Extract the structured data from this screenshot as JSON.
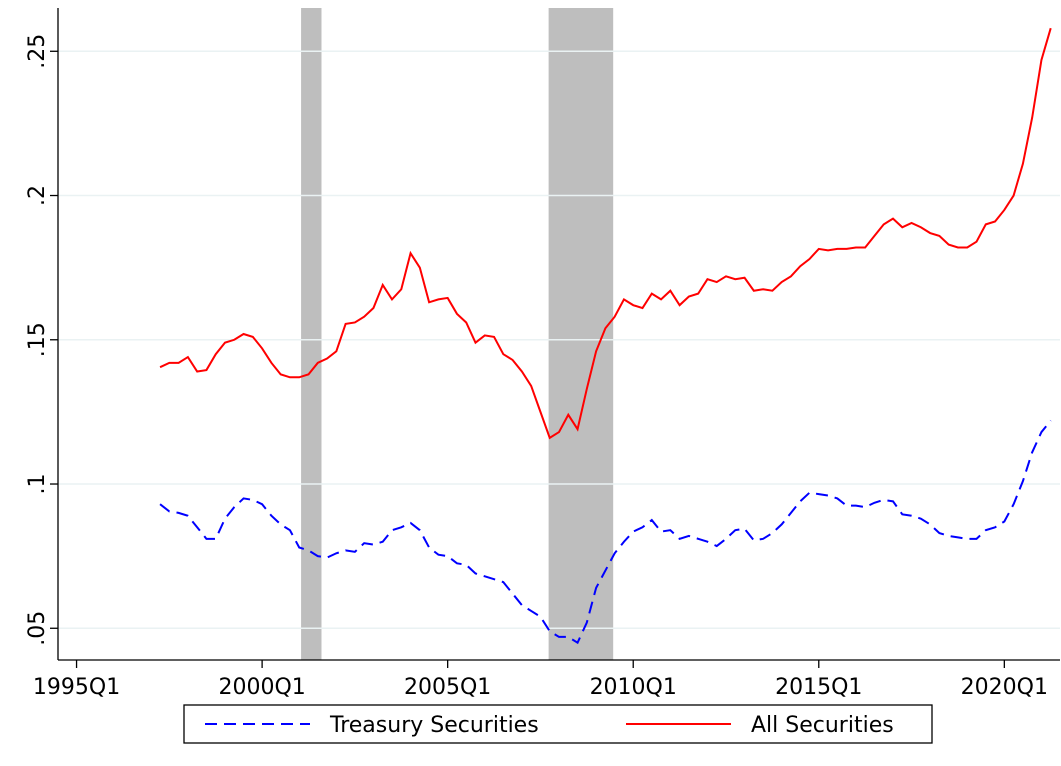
{
  "chart_data": {
    "type": "line",
    "xlim": [
      1994.5,
      2021.5
    ],
    "xticks": [
      {
        "value": 1995,
        "label": "1995Q1"
      },
      {
        "value": 2000,
        "label": "2000Q1"
      },
      {
        "value": 2005,
        "label": "2005Q1"
      },
      {
        "value": 2010,
        "label": "2010Q1"
      },
      {
        "value": 2015,
        "label": "2015Q1"
      },
      {
        "value": 2020,
        "label": "2020Q1"
      }
    ],
    "ylim": [
      0.039,
      0.265
    ],
    "yticks": [
      {
        "value": 0.05,
        "label": ".05"
      },
      {
        "value": 0.1,
        "label": ".1"
      },
      {
        "value": 0.15,
        "label": ".15"
      },
      {
        "value": 0.2,
        "label": ".2"
      },
      {
        "value": 0.25,
        "label": ".25"
      }
    ],
    "grid": true,
    "shaded_regions": {
      "color": "#bebebe",
      "ranges": [
        [
          2001.05,
          2001.6
        ],
        [
          2007.72,
          2009.46
        ]
      ]
    },
    "legend": "bottom",
    "x": [
      1997.25,
      1997.5,
      1997.75,
      1998,
      1998.25,
      1998.5,
      1998.75,
      1999,
      1999.25,
      1999.5,
      1999.75,
      2000,
      2000.25,
      2000.5,
      2000.75,
      2001,
      2001.25,
      2001.5,
      2001.75,
      2002,
      2002.25,
      2002.5,
      2002.75,
      2003,
      2003.25,
      2003.5,
      2003.75,
      2004,
      2004.25,
      2004.5,
      2004.75,
      2005,
      2005.25,
      2005.5,
      2005.75,
      2006,
      2006.25,
      2006.5,
      2006.75,
      2007,
      2007.25,
      2007.5,
      2007.75,
      2008,
      2008.25,
      2008.5,
      2008.75,
      2009,
      2009.25,
      2009.5,
      2009.75,
      2010,
      2010.25,
      2010.5,
      2010.75,
      2011,
      2011.25,
      2011.5,
      2011.75,
      2012,
      2012.25,
      2012.5,
      2012.75,
      2013,
      2013.25,
      2013.5,
      2013.75,
      2014,
      2014.25,
      2014.5,
      2014.75,
      2015,
      2015.25,
      2015.5,
      2015.75,
      2016,
      2016.25,
      2016.5,
      2016.75,
      2017,
      2017.25,
      2017.5,
      2017.75,
      2018,
      2018.25,
      2018.5,
      2018.75,
      2019,
      2019.25,
      2019.5,
      2019.75,
      2020,
      2020.25,
      2020.5,
      2020.75,
      2021,
      2021.25
    ],
    "series": [
      {
        "name": "Treasury Securities",
        "color": "#0000ff",
        "dash": true,
        "values": [
          0.093,
          0.0905,
          0.09,
          0.089,
          0.085,
          0.081,
          0.081,
          0.088,
          0.092,
          0.095,
          0.0945,
          0.093,
          0.089,
          0.086,
          0.084,
          0.078,
          0.077,
          0.075,
          0.0745,
          0.076,
          0.077,
          0.0765,
          0.0795,
          0.079,
          0.08,
          0.084,
          0.085,
          0.0865,
          0.084,
          0.078,
          0.0755,
          0.075,
          0.0725,
          0.072,
          0.069,
          0.068,
          0.067,
          0.066,
          0.062,
          0.058,
          0.056,
          0.054,
          0.049,
          0.047,
          0.047,
          0.045,
          0.052,
          0.064,
          0.07,
          0.076,
          0.08,
          0.0835,
          0.085,
          0.0875,
          0.0835,
          0.084,
          0.081,
          0.082,
          0.081,
          0.08,
          0.0785,
          0.081,
          0.084,
          0.0845,
          0.0805,
          0.081,
          0.083,
          0.086,
          0.09,
          0.094,
          0.097,
          0.0965,
          0.096,
          0.095,
          0.0925,
          0.0925,
          0.092,
          0.0935,
          0.0945,
          0.094,
          0.0895,
          0.089,
          0.088,
          0.086,
          0.083,
          0.082,
          0.0815,
          0.081,
          0.081,
          0.084,
          0.085,
          0.087,
          0.093,
          0.101,
          0.111,
          0.118,
          0.122
        ]
      },
      {
        "name": "All Securities",
        "color": "#ff0000",
        "dash": false,
        "values": [
          0.1405,
          0.142,
          0.142,
          0.144,
          0.139,
          0.1395,
          0.145,
          0.149,
          0.15,
          0.152,
          0.151,
          0.147,
          0.142,
          0.138,
          0.137,
          0.137,
          0.138,
          0.142,
          0.1435,
          0.146,
          0.1555,
          0.156,
          0.158,
          0.161,
          0.169,
          0.164,
          0.1675,
          0.18,
          0.175,
          0.163,
          0.164,
          0.1645,
          0.159,
          0.156,
          0.149,
          0.1515,
          0.151,
          0.145,
          0.143,
          0.139,
          0.134,
          0.125,
          0.116,
          0.118,
          0.124,
          0.119,
          0.133,
          0.146,
          0.154,
          0.158,
          0.164,
          0.162,
          0.161,
          0.166,
          0.164,
          0.167,
          0.162,
          0.165,
          0.166,
          0.171,
          0.17,
          0.172,
          0.171,
          0.1715,
          0.167,
          0.1675,
          0.167,
          0.17,
          0.172,
          0.1755,
          0.178,
          0.1815,
          0.181,
          0.1815,
          0.1815,
          0.182,
          0.182,
          0.186,
          0.19,
          0.192,
          0.189,
          0.1905,
          0.189,
          0.187,
          0.186,
          0.183,
          0.182,
          0.182,
          0.184,
          0.19,
          0.191,
          0.195,
          0.2,
          0.211,
          0.227,
          0.247,
          0.258
        ]
      }
    ]
  }
}
